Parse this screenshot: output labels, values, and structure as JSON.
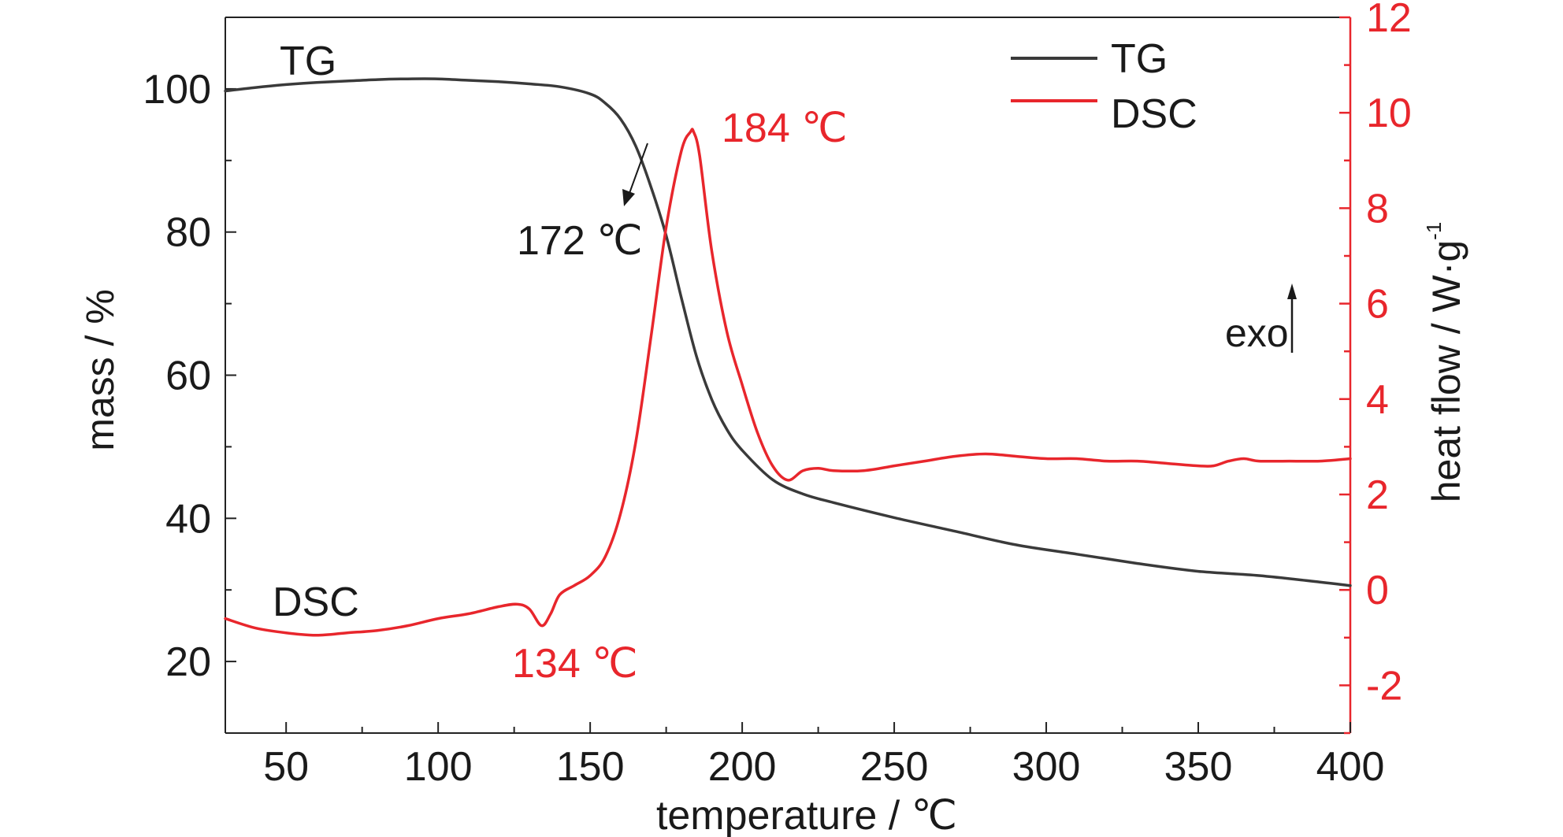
{
  "chart_data": {
    "type": "line",
    "xlabel": "temperature / ℃",
    "ylabel_left": "mass / %",
    "ylabel_right": "heat flow / W·g",
    "ylabel_right_sup": "-1",
    "xlim": [
      30,
      400
    ],
    "ylim_left": [
      10,
      110
    ],
    "ylim_right": [
      -3,
      12
    ],
    "x_ticks": [
      "50",
      "100",
      "150",
      "200",
      "250",
      "300",
      "350",
      "400"
    ],
    "y_left_ticks": [
      "20",
      "40",
      "60",
      "80",
      "100"
    ],
    "y_right_ticks": [
      "-2",
      "0",
      "2",
      "4",
      "6",
      "8",
      "10",
      "12"
    ],
    "colors": {
      "TG": "#3a3a3a",
      "DSC": "#e8262c",
      "axis_right": "#e8262c"
    },
    "legend": {
      "position": "top-right",
      "entries": [
        "TG",
        "DSC"
      ]
    },
    "series": [
      {
        "name": "TG",
        "axis": "left",
        "x": [
          30,
          40,
          50,
          60,
          70,
          80,
          90,
          100,
          110,
          120,
          130,
          140,
          150,
          155,
          160,
          165,
          170,
          175,
          180,
          185,
          190,
          195,
          200,
          210,
          220,
          230,
          250,
          270,
          290,
          310,
          330,
          350,
          370,
          390,
          400
        ],
        "y": [
          99.7,
          100.2,
          100.6,
          100.9,
          101.1,
          101.3,
          101.4,
          101.4,
          101.2,
          101.0,
          100.7,
          100.3,
          99.3,
          98.0,
          95.8,
          92.0,
          86.3,
          79.5,
          70.8,
          62.6,
          56.6,
          52.4,
          49.5,
          45.4,
          43.4,
          42.2,
          40.1,
          38.2,
          36.3,
          35.0,
          33.7,
          32.6,
          32.0,
          31.1,
          30.6
        ]
      },
      {
        "name": "DSC",
        "axis": "right",
        "x": [
          30,
          40,
          50,
          60,
          70,
          80,
          90,
          100,
          110,
          120,
          126,
          130,
          134,
          137,
          140,
          145,
          150,
          155,
          160,
          165,
          170,
          175,
          180,
          183,
          184,
          186,
          190,
          195,
          200,
          205,
          210,
          215,
          220,
          225,
          230,
          240,
          250,
          260,
          270,
          280,
          290,
          300,
          310,
          320,
          330,
          340,
          350,
          355,
          360,
          365,
          370,
          380,
          390,
          400
        ],
        "y": [
          -0.6,
          -0.8,
          -0.9,
          -0.95,
          -0.9,
          -0.85,
          -0.75,
          -0.6,
          -0.5,
          -0.35,
          -0.3,
          -0.4,
          -0.75,
          -0.5,
          -0.1,
          0.1,
          0.3,
          0.7,
          1.6,
          3.1,
          5.3,
          7.6,
          9.2,
          9.6,
          9.6,
          9.1,
          7.1,
          5.4,
          4.3,
          3.3,
          2.6,
          2.3,
          2.5,
          2.55,
          2.5,
          2.5,
          2.6,
          2.7,
          2.8,
          2.85,
          2.8,
          2.75,
          2.75,
          2.7,
          2.7,
          2.65,
          2.6,
          2.6,
          2.7,
          2.75,
          2.7,
          2.7,
          2.7,
          2.75
        ]
      }
    ],
    "annotations": [
      {
        "text": "TG",
        "color": "#1a1a1a"
      },
      {
        "text": "DSC",
        "color": "#1a1a1a"
      },
      {
        "text": "184 ℃",
        "color": "#e8262c"
      },
      {
        "text": "172 ℃",
        "color": "#1a1a1a"
      },
      {
        "text": "134 ℃",
        "color": "#e8262c"
      },
      {
        "text": "exo",
        "color": "#1a1a1a"
      }
    ]
  }
}
